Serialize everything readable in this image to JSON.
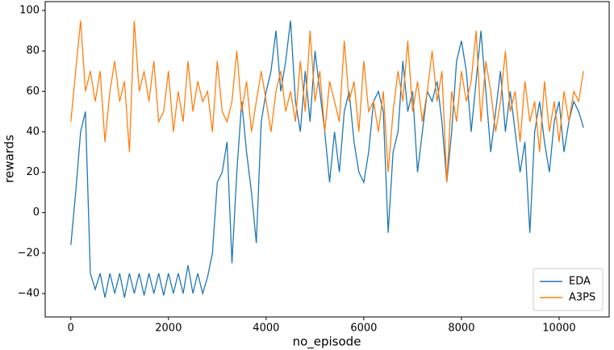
{
  "chart_data": {
    "type": "line",
    "x_label": "no_episode",
    "y_label": "rewards",
    "x": [
      0,
      100,
      200,
      300,
      400,
      500,
      600,
      700,
      800,
      900,
      1000,
      1100,
      1200,
      1300,
      1400,
      1500,
      1600,
      1700,
      1800,
      1900,
      2000,
      2100,
      2200,
      2300,
      2400,
      2500,
      2600,
      2700,
      2800,
      2900,
      3000,
      3100,
      3200,
      3300,
      3400,
      3500,
      3600,
      3700,
      3800,
      3900,
      4000,
      4100,
      4200,
      4300,
      4400,
      4500,
      4600,
      4700,
      4800,
      4900,
      5000,
      5100,
      5200,
      5300,
      5400,
      5500,
      5600,
      5700,
      5800,
      5900,
      6000,
      6100,
      6200,
      6300,
      6400,
      6500,
      6600,
      6700,
      6800,
      6900,
      7000,
      7100,
      7200,
      7300,
      7400,
      7500,
      7600,
      7700,
      7800,
      7900,
      8000,
      8100,
      8200,
      8300,
      8400,
      8500,
      8600,
      8700,
      8800,
      8900,
      9000,
      9100,
      9200,
      9300,
      9400,
      9500,
      9600,
      9700,
      9800,
      9900,
      10000,
      10100,
      10200,
      10300,
      10400,
      10500
    ],
    "series": [
      {
        "name": "EDA",
        "color": "#1f77b4",
        "values": [
          -16,
          10,
          40,
          50,
          -30,
          -38,
          -30,
          -42,
          -30,
          -40,
          -30,
          -42,
          -30,
          -40,
          -30,
          -41,
          -30,
          -40,
          -30,
          -41,
          -30,
          -40,
          -30,
          -40,
          -26,
          -40,
          -30,
          -40,
          -32,
          -20,
          15,
          20,
          35,
          -25,
          20,
          55,
          30,
          10,
          -15,
          45,
          60,
          70,
          90,
          60,
          75,
          95,
          55,
          40,
          70,
          45,
          80,
          60,
          40,
          15,
          40,
          20,
          50,
          60,
          35,
          20,
          15,
          30,
          55,
          60,
          50,
          -10,
          30,
          40,
          75,
          50,
          60,
          20,
          40,
          60,
          55,
          65,
          45,
          15,
          40,
          75,
          85,
          70,
          40,
          65,
          90,
          60,
          30,
          50,
          70,
          40,
          60,
          40,
          20,
          35,
          -10,
          40,
          55,
          35,
          20,
          45,
          55,
          30,
          45,
          55,
          50,
          42
        ]
      },
      {
        "name": "A3PS",
        "color": "#ff7f0e",
        "values": [
          45,
          70,
          95,
          60,
          70,
          55,
          70,
          35,
          60,
          75,
          55,
          65,
          30,
          95,
          60,
          70,
          55,
          75,
          45,
          50,
          70,
          40,
          60,
          45,
          75,
          50,
          65,
          55,
          60,
          40,
          75,
          50,
          45,
          55,
          80,
          50,
          65,
          40,
          55,
          70,
          55,
          40,
          60,
          70,
          50,
          60,
          45,
          75,
          50,
          90,
          55,
          70,
          40,
          65,
          55,
          45,
          85,
          55,
          65,
          40,
          75,
          50,
          55,
          40,
          60,
          20,
          50,
          70,
          55,
          85,
          50,
          65,
          45,
          60,
          80,
          55,
          70,
          15,
          60,
          45,
          70,
          55,
          65,
          90,
          45,
          75,
          60,
          40,
          55,
          80,
          50,
          60,
          35,
          65,
          45,
          55,
          30,
          65,
          40,
          55,
          35,
          60,
          45,
          60,
          55,
          70
        ]
      }
    ],
    "xlim": [
      -525,
      11025
    ],
    "ylim": [
      -51.6,
      104.4
    ],
    "xticks": [
      0,
      2000,
      4000,
      6000,
      8000,
      10000
    ],
    "yticks": [
      {
        "value": -40,
        "label": "−40"
      },
      {
        "value": -20,
        "label": "−20"
      },
      0,
      20,
      40,
      60,
      80,
      100
    ],
    "legend": "lower right"
  }
}
